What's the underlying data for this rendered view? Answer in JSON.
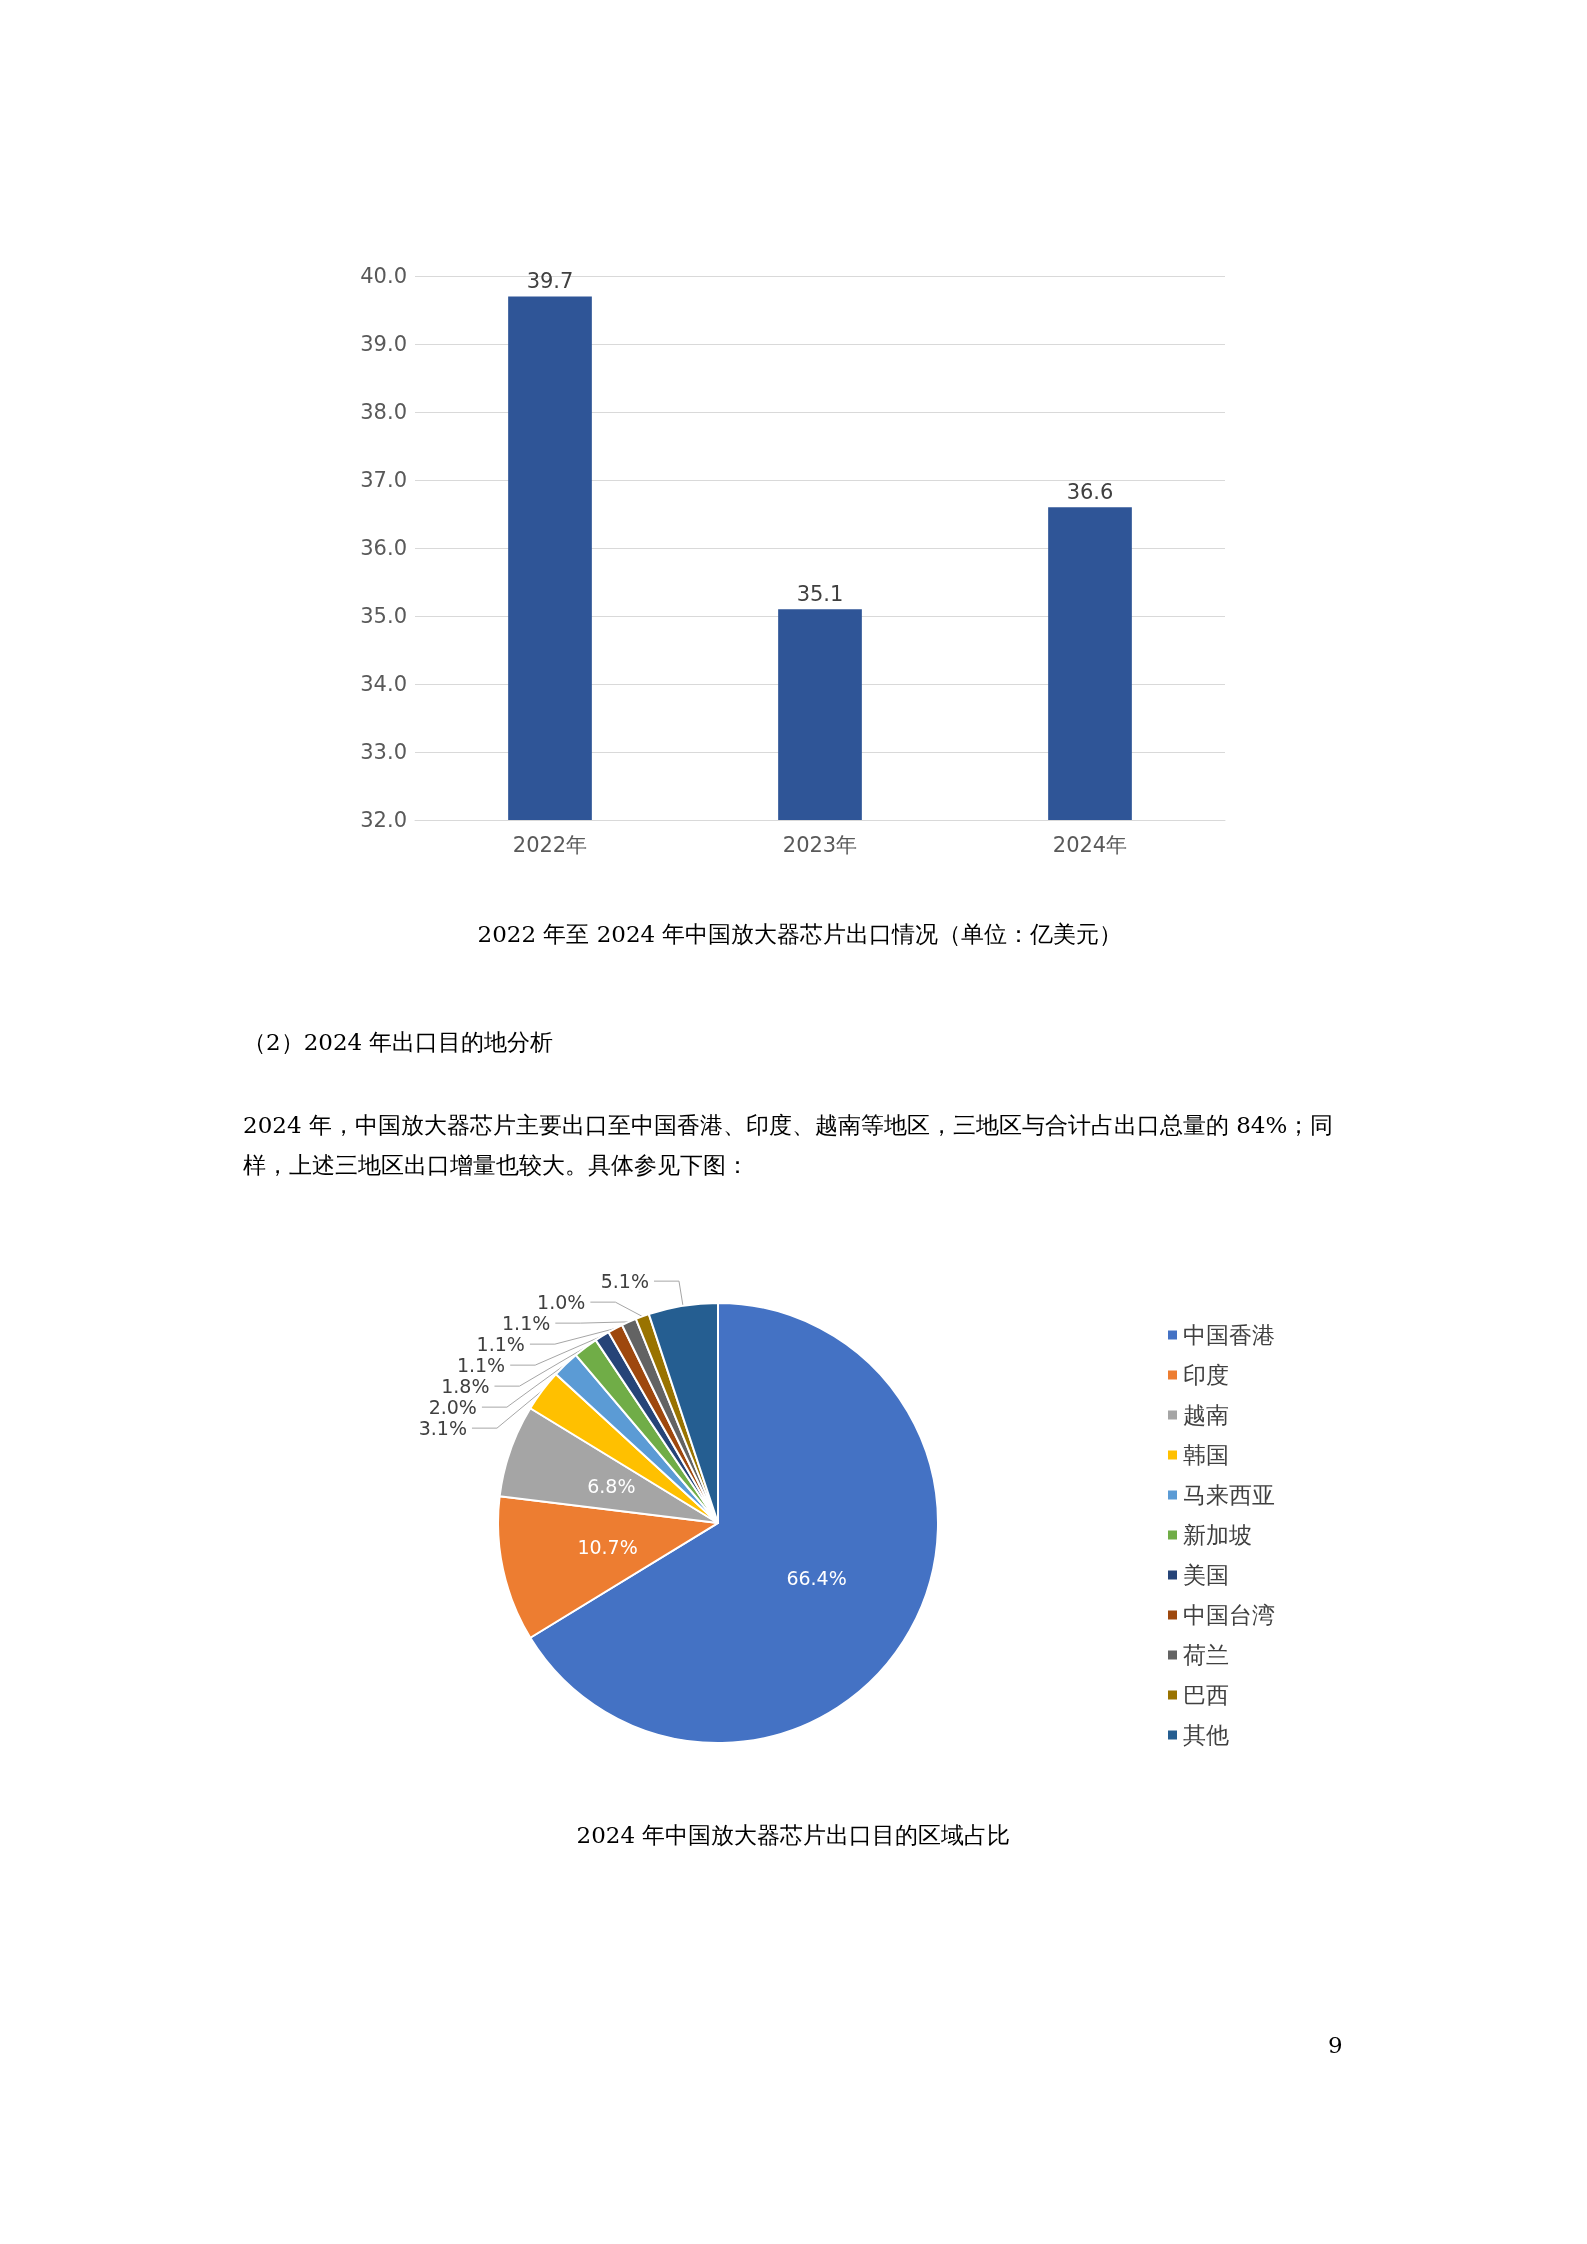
{
  "chart_data": [
    {
      "type": "bar",
      "title": "2022 年至 2024 年中国放大器芯片出口情况（单位：亿美元）",
      "categories": [
        "2022年",
        "2023年",
        "2024年"
      ],
      "values": [
        39.7,
        35.1,
        36.6
      ],
      "color": "#2f5597",
      "ylim": [
        32,
        40
      ],
      "yticks": [
        {
          "value": 32,
          "label": "32.0"
        },
        {
          "value": 33,
          "label": "33.0"
        },
        {
          "value": 34,
          "label": "34.0"
        },
        {
          "value": 35,
          "label": "35.0"
        },
        {
          "value": 36,
          "label": "36.0"
        },
        {
          "value": 37,
          "label": "37.0"
        },
        {
          "value": 38,
          "label": "38.0"
        },
        {
          "value": 39,
          "label": "39.0"
        },
        {
          "value": 40,
          "label": "40.0"
        }
      ],
      "grid": "y",
      "data_labels": true
    },
    {
      "type": "pie",
      "title": "2024 年中国放大器芯片出口目的区域占比",
      "annotations": [
        "（2）2024 年出口目的地分析",
        "2024 年，中国放大器芯片主要出口至中国香港、印度、越南等地区，三地区与合计占出口总量的 84%；同样，上述三地区出口增量也较大。具体参见下图：",
        "9"
      ],
      "categories": [
        "中国香港",
        "印度",
        "越南",
        "韩国",
        "马来西亚",
        "新加坡",
        "美国",
        "中国台湾",
        "荷兰",
        "巴西",
        "其他"
      ],
      "values": [
        66.4,
        10.7,
        6.8,
        3.1,
        2.0,
        1.8,
        1.1,
        1.1,
        1.1,
        1.0,
        5.1
      ],
      "colors": [
        "#4472c4",
        "#ed7d31",
        "#a5a5a5",
        "#ffc000",
        "#5b9bd5",
        "#70ad47",
        "#264478",
        "#9e480e",
        "#636363",
        "#997300",
        "#255e91"
      ],
      "value_labels": [
        "66.4%",
        "10.7%",
        "6.8%",
        "3.1%",
        "2.0%",
        "1.8%",
        "1.1%",
        "1.1%",
        "1.1%",
        "1.0%",
        "5.1%"
      ],
      "legend": "right"
    }
  ]
}
